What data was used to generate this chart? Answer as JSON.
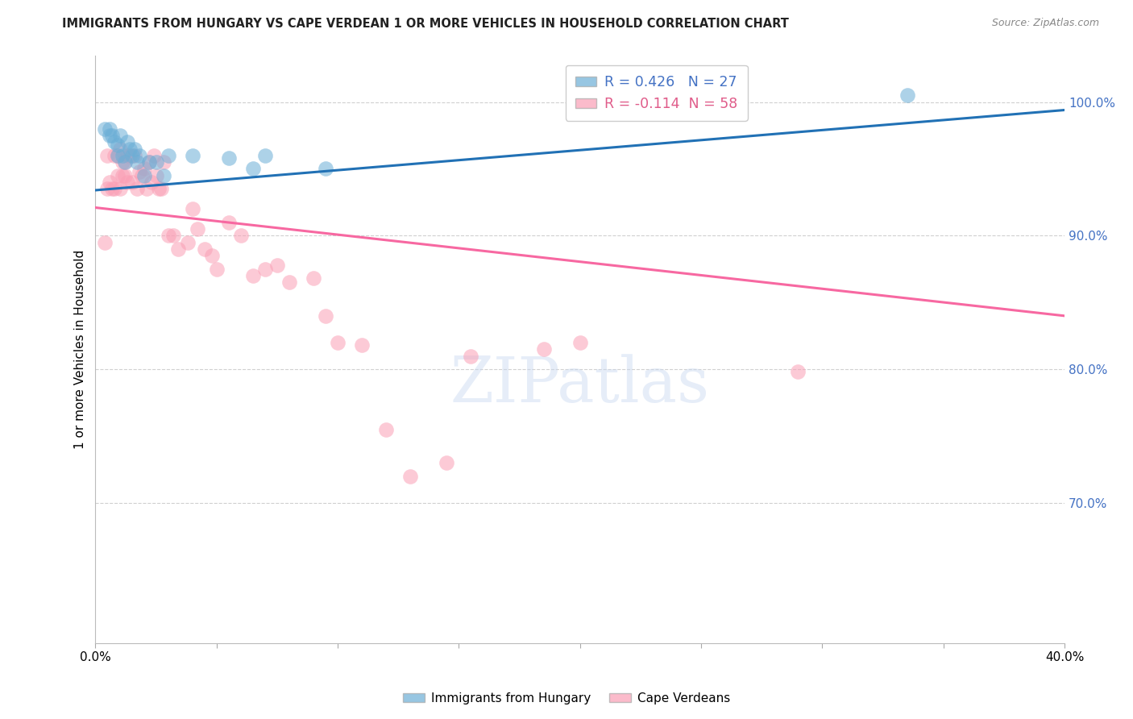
{
  "title": "IMMIGRANTS FROM HUNGARY VS CAPE VERDEAN 1 OR MORE VEHICLES IN HOUSEHOLD CORRELATION CHART",
  "source": "Source: ZipAtlas.com",
  "ylabel": "1 or more Vehicles in Household",
  "xlim": [
    0.0,
    0.4
  ],
  "ylim": [
    0.595,
    1.035
  ],
  "yticks": [
    0.7,
    0.8,
    0.9,
    1.0
  ],
  "ytick_labels": [
    "70.0%",
    "80.0%",
    "90.0%",
    "100.0%"
  ],
  "xticks": [
    0.0,
    0.05,
    0.1,
    0.15,
    0.2,
    0.25,
    0.3,
    0.35,
    0.4
  ],
  "xtick_labels": [
    "0.0%",
    "",
    "",
    "",
    "",
    "",
    "",
    "",
    "40.0%"
  ],
  "hungary_R": 0.426,
  "hungary_N": 27,
  "capeverde_R": -0.114,
  "capeverde_N": 58,
  "hungary_color": "#6baed6",
  "capeverde_color": "#fa9fb5",
  "hungary_line_color": "#2171b5",
  "capeverde_line_color": "#f768a1",
  "background_color": "#ffffff",
  "grid_color": "#d0d0d0",
  "hungary_line_x0": 0.0,
  "hungary_line_y0": 0.934,
  "hungary_line_x1": 0.4,
  "hungary_line_y1": 0.994,
  "capeverde_line_x0": 0.0,
  "capeverde_line_y0": 0.921,
  "capeverde_line_x1": 0.4,
  "capeverde_line_y1": 0.84,
  "hungary_x": [
    0.004,
    0.006,
    0.006,
    0.007,
    0.008,
    0.009,
    0.009,
    0.01,
    0.011,
    0.012,
    0.013,
    0.014,
    0.015,
    0.016,
    0.017,
    0.018,
    0.02,
    0.022,
    0.025,
    0.028,
    0.03,
    0.04,
    0.055,
    0.065,
    0.07,
    0.095,
    0.335
  ],
  "hungary_y": [
    0.98,
    0.98,
    0.975,
    0.975,
    0.97,
    0.968,
    0.96,
    0.975,
    0.96,
    0.955,
    0.97,
    0.965,
    0.96,
    0.965,
    0.955,
    0.96,
    0.945,
    0.955,
    0.955,
    0.945,
    0.96,
    0.96,
    0.958,
    0.95,
    0.96,
    0.95,
    1.005
  ],
  "capeverde_x": [
    0.004,
    0.005,
    0.005,
    0.006,
    0.007,
    0.008,
    0.008,
    0.009,
    0.009,
    0.01,
    0.01,
    0.011,
    0.011,
    0.012,
    0.012,
    0.013,
    0.013,
    0.014,
    0.015,
    0.016,
    0.017,
    0.018,
    0.019,
    0.02,
    0.021,
    0.022,
    0.023,
    0.024,
    0.025,
    0.026,
    0.027,
    0.028,
    0.03,
    0.032,
    0.034,
    0.038,
    0.04,
    0.042,
    0.045,
    0.048,
    0.05,
    0.055,
    0.06,
    0.065,
    0.07,
    0.075,
    0.08,
    0.09,
    0.095,
    0.1,
    0.11,
    0.12,
    0.13,
    0.145,
    0.155,
    0.185,
    0.2,
    0.29
  ],
  "capeverde_y": [
    0.895,
    0.96,
    0.935,
    0.94,
    0.935,
    0.935,
    0.96,
    0.945,
    0.96,
    0.935,
    0.965,
    0.955,
    0.945,
    0.955,
    0.945,
    0.96,
    0.94,
    0.96,
    0.94,
    0.96,
    0.935,
    0.948,
    0.945,
    0.95,
    0.935,
    0.955,
    0.94,
    0.96,
    0.945,
    0.935,
    0.935,
    0.955,
    0.9,
    0.9,
    0.89,
    0.895,
    0.92,
    0.905,
    0.89,
    0.885,
    0.875,
    0.91,
    0.9,
    0.87,
    0.875,
    0.878,
    0.865,
    0.868,
    0.84,
    0.82,
    0.818,
    0.755,
    0.72,
    0.73,
    0.81,
    0.815,
    0.82,
    0.798
  ]
}
